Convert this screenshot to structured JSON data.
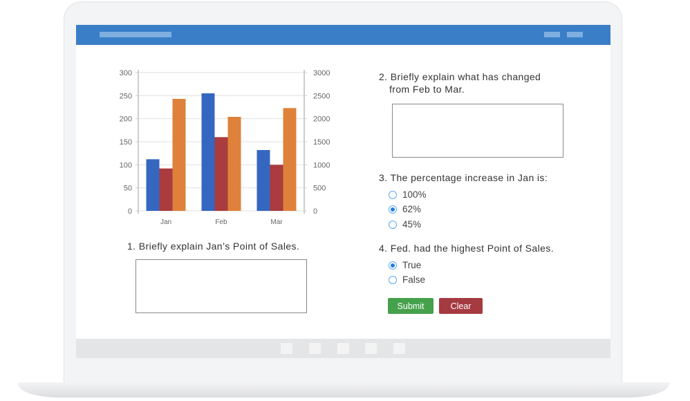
{
  "chart_data": {
    "type": "bar",
    "categories": [
      "Jan",
      "Feb",
      "Mar"
    ],
    "series": [
      {
        "values": [
          112,
          255,
          132
        ],
        "color": "#3567c0"
      },
      {
        "values": [
          92,
          160,
          100
        ],
        "color": "#aa3b3e"
      },
      {
        "values": [
          243,
          204,
          223
        ],
        "color": "#df813a"
      }
    ],
    "ylim": [
      0,
      300
    ],
    "yticks": [
      "0",
      "50",
      "100",
      "150",
      "200",
      "250",
      "300"
    ],
    "y2lim": [
      0,
      3000
    ],
    "y2ticks": [
      "0",
      "500",
      "1000",
      "1500",
      "2000",
      "2500",
      "3000"
    ],
    "grid": true
  },
  "questions": {
    "q1": "1. Briefly explain Jan’s Point of Sales.",
    "q2_line1": "2. Briefly explain what has changed",
    "q2_line2": "from Feb to Mar.",
    "q3": "3. The percentage increase in Jan is:",
    "q3_options": [
      {
        "label": "100%",
        "selected": false
      },
      {
        "label": "62%",
        "selected": true
      },
      {
        "label": "45%",
        "selected": false
      }
    ],
    "q4": "4. Fed. had the highest Point of Sales.",
    "q4_options": [
      {
        "label": "True",
        "selected": true
      },
      {
        "label": "False",
        "selected": false
      }
    ],
    "q1_answer": "",
    "q2_answer": ""
  },
  "buttons": {
    "submit": "Submit",
    "clear": "Clear",
    "submit_color": "#45a14b",
    "clear_color": "#a53a40"
  },
  "colors": {
    "header": "#3a7ec8"
  }
}
